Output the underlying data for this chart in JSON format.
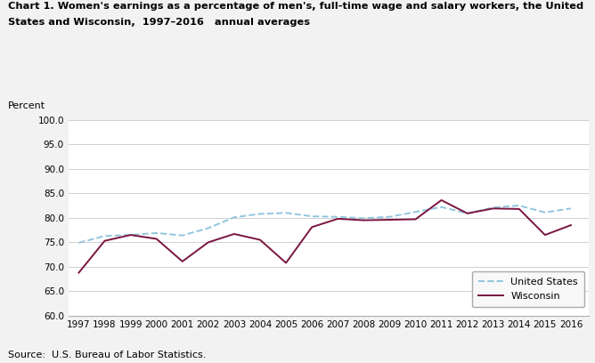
{
  "years": [
    1997,
    1998,
    1999,
    2000,
    2001,
    2002,
    2003,
    2004,
    2005,
    2006,
    2007,
    2008,
    2009,
    2010,
    2011,
    2012,
    2013,
    2014,
    2015,
    2016
  ],
  "us_values": [
    74.9,
    76.3,
    76.5,
    76.9,
    76.4,
    77.9,
    80.1,
    80.8,
    81.0,
    80.3,
    80.2,
    79.9,
    80.2,
    81.2,
    82.2,
    80.9,
    82.1,
    82.5,
    81.1,
    81.9
  ],
  "wi_values": [
    68.8,
    75.3,
    76.5,
    75.7,
    71.1,
    75.0,
    76.7,
    75.5,
    70.8,
    78.1,
    79.8,
    79.5,
    79.6,
    79.7,
    83.6,
    80.9,
    81.9,
    81.8,
    76.5,
    78.5
  ],
  "us_color": "#92c5de",
  "wi_color": "#7b1540",
  "title_line1": "Chart 1. Women's earnings as a percentage of men's, full-time wage and salary workers, the United",
  "title_line2": "States and Wisconsin,  1997–2016   annual averages",
  "percent_label": "Percent",
  "ylim": [
    60.0,
    100.0
  ],
  "yticks": [
    60.0,
    65.0,
    70.0,
    75.0,
    80.0,
    85.0,
    90.0,
    95.0,
    100.0
  ],
  "source_text": "Source:  U.S. Bureau of Labor Statistics.",
  "legend_us": "United States",
  "legend_wi": "Wisconsin",
  "background_color": "#f2f2f2",
  "plot_bg_color": "#ffffff"
}
